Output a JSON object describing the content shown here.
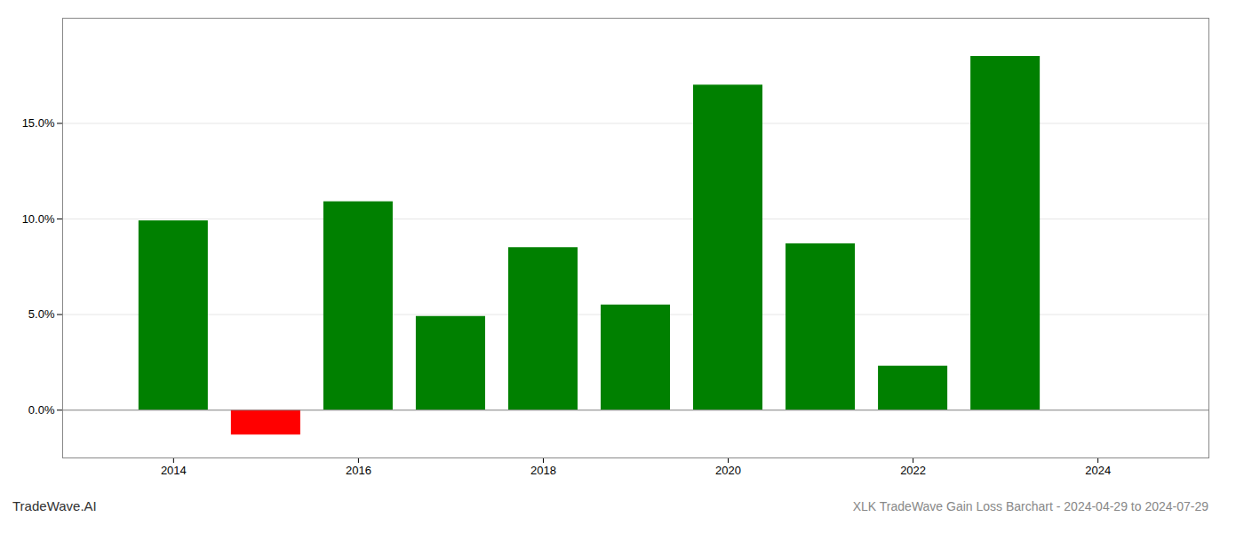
{
  "chart_data": {
    "type": "bar",
    "title": "XLK TradeWave Gain Loss Barchart - 2024-04-29 to 2024-07-29",
    "annotations": [
      {
        "text": "TradeWave.AI"
      }
    ],
    "x": [
      2014,
      2015,
      2016,
      2017,
      2018,
      2019,
      2020,
      2021,
      2022,
      2023
    ],
    "values": [
      0.099,
      -0.013,
      0.109,
      0.049,
      0.085,
      0.055,
      0.17,
      0.087,
      0.023,
      0.185
    ],
    "colors": [
      "#008000",
      "#ff0000",
      "#008000",
      "#008000",
      "#008000",
      "#008000",
      "#008000",
      "#008000",
      "#008000",
      "#008000"
    ],
    "xlim": [
      2012.8,
      2025.2
    ],
    "xticks": [
      2014,
      2016,
      2018,
      2020,
      2022,
      2024
    ],
    "ylim": [
      -0.025,
      0.205
    ],
    "yticks": [
      {
        "value": 0.0,
        "label": "0.0%"
      },
      {
        "value": 0.05,
        "label": "5.0%"
      },
      {
        "value": 0.1,
        "label": "10.0%"
      },
      {
        "value": 0.15,
        "label": "15.0%"
      }
    ],
    "grid": true
  }
}
